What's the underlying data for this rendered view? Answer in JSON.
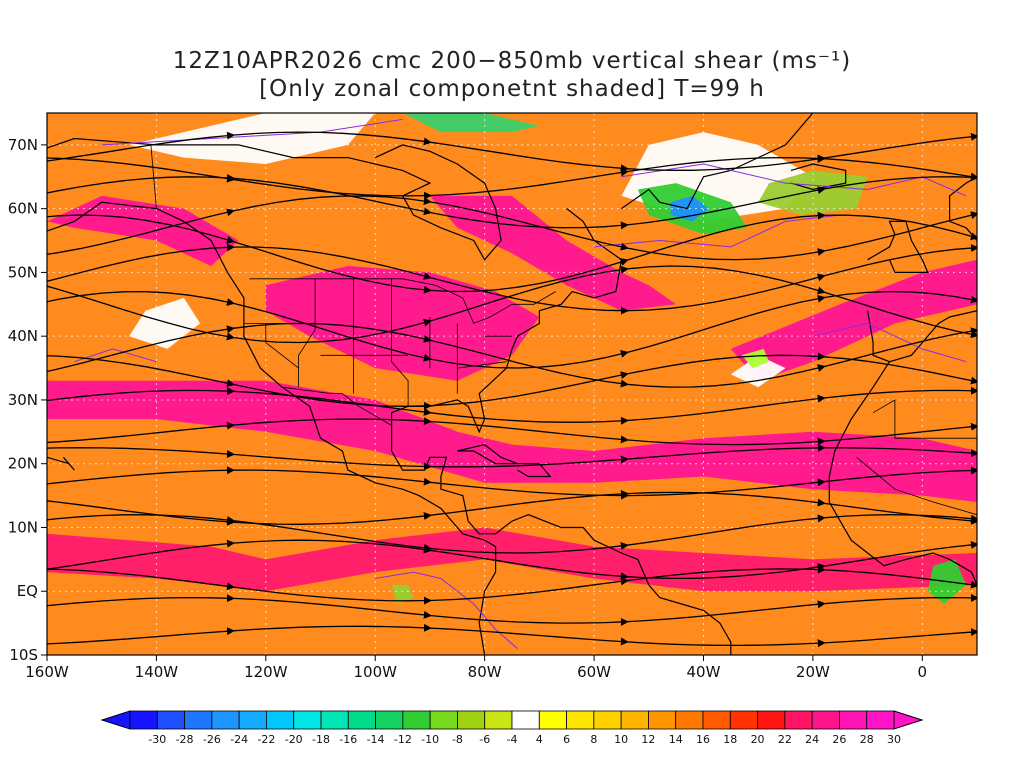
{
  "title": {
    "line1": "12Z10APR2026 cmc 200−850mb vertical shear (ms⁻¹)",
    "line2": "[Only zonal componetnt shaded] T=99 h"
  },
  "map": {
    "lon_range": [
      -160,
      10
    ],
    "lat_range": [
      -10,
      75
    ],
    "x_ticks": [
      {
        "lon": -160,
        "label": "160W"
      },
      {
        "lon": -140,
        "label": "140W"
      },
      {
        "lon": -120,
        "label": "120W"
      },
      {
        "lon": -100,
        "label": "100W"
      },
      {
        "lon": -80,
        "label": "80W"
      },
      {
        "lon": -60,
        "label": "60W"
      },
      {
        "lon": -40,
        "label": "40W"
      },
      {
        "lon": -20,
        "label": "20W"
      },
      {
        "lon": 0,
        "label": "0"
      }
    ],
    "y_ticks": [
      {
        "lat": 70,
        "label": "70N"
      },
      {
        "lat": 60,
        "label": "60N"
      },
      {
        "lat": 50,
        "label": "50N"
      },
      {
        "lat": 40,
        "label": "40N"
      },
      {
        "lat": 30,
        "label": "30N"
      },
      {
        "lat": 20,
        "label": "20N"
      },
      {
        "lat": 10,
        "label": "10N"
      },
      {
        "lat": 0,
        "label": "EQ"
      },
      {
        "lat": -10,
        "label": "10S"
      }
    ],
    "shading_regions": [
      {
        "level": 30,
        "color": "#ff1493",
        "points": [
          [
            -160,
            33
          ],
          [
            -120,
            33
          ],
          [
            -100,
            30
          ],
          [
            -85,
            25
          ],
          [
            -75,
            23
          ],
          [
            -60,
            22
          ],
          [
            -40,
            24
          ],
          [
            -20,
            25
          ],
          [
            0,
            24
          ],
          [
            10,
            22
          ],
          [
            10,
            14
          ],
          [
            0,
            15
          ],
          [
            -20,
            16
          ],
          [
            -40,
            18
          ],
          [
            -60,
            17
          ],
          [
            -80,
            17
          ],
          [
            -100,
            22
          ],
          [
            -120,
            25
          ],
          [
            -140,
            27
          ],
          [
            -160,
            27
          ]
        ]
      },
      {
        "level": 30,
        "color": "#ff1493",
        "points": [
          [
            -120,
            48
          ],
          [
            -105,
            51
          ],
          [
            -90,
            50
          ],
          [
            -78,
            47
          ],
          [
            -70,
            43
          ],
          [
            -75,
            37
          ],
          [
            -85,
            33
          ],
          [
            -100,
            35
          ],
          [
            -112,
            40
          ],
          [
            -120,
            44
          ]
        ]
      },
      {
        "level": 30,
        "color": "#ff1493",
        "points": [
          [
            -90,
            62
          ],
          [
            -75,
            62
          ],
          [
            -65,
            55
          ],
          [
            -55,
            50
          ],
          [
            -50,
            48
          ],
          [
            -45,
            45
          ],
          [
            -55,
            44
          ],
          [
            -65,
            48
          ],
          [
            -75,
            53
          ],
          [
            -85,
            57
          ]
        ]
      },
      {
        "level": 30,
        "color": "#ff1493",
        "points": [
          [
            -150,
            62
          ],
          [
            -135,
            60
          ],
          [
            -125,
            55
          ],
          [
            -130,
            51
          ],
          [
            -140,
            55
          ],
          [
            -155,
            57
          ],
          [
            -160,
            58
          ]
        ]
      },
      {
        "level": 30,
        "color": "#ff1493",
        "points": [
          [
            -35,
            38
          ],
          [
            -15,
            45
          ],
          [
            0,
            50
          ],
          [
            10,
            52
          ],
          [
            10,
            45
          ],
          [
            -5,
            42
          ],
          [
            -20,
            36
          ],
          [
            -30,
            33
          ]
        ]
      },
      {
        "level": 28,
        "color": "#ff1a6e",
        "points": [
          [
            -160,
            9
          ],
          [
            -130,
            7
          ],
          [
            -120,
            5
          ],
          [
            -100,
            8
          ],
          [
            -80,
            10
          ],
          [
            -60,
            7
          ],
          [
            -40,
            6
          ],
          [
            -20,
            5
          ],
          [
            10,
            6
          ],
          [
            10,
            1
          ],
          [
            -20,
            0
          ],
          [
            -40,
            0
          ],
          [
            -60,
            2
          ],
          [
            -80,
            5
          ],
          [
            -100,
            3
          ],
          [
            -120,
            0
          ],
          [
            -140,
            2
          ],
          [
            -160,
            3
          ]
        ]
      },
      {
        "level": 0,
        "color": "#ffffff",
        "points": [
          [
            -142,
            44
          ],
          [
            -135,
            46
          ],
          [
            -132,
            42
          ],
          [
            -138,
            38
          ],
          [
            -145,
            40
          ]
        ]
      },
      {
        "level": 0,
        "color": "#ffffff",
        "points": [
          [
            -145,
            70
          ],
          [
            -120,
            75
          ],
          [
            -100,
            75
          ],
          [
            -105,
            70
          ],
          [
            -120,
            67
          ],
          [
            -135,
            68
          ]
        ]
      },
      {
        "level": 0,
        "color": "#ffffff",
        "points": [
          [
            -35,
            34
          ],
          [
            -30,
            37
          ],
          [
            -25,
            35
          ],
          [
            -30,
            32
          ]
        ]
      },
      {
        "level": 0,
        "color": "#ffffff",
        "points": [
          [
            -50,
            70
          ],
          [
            -40,
            72
          ],
          [
            -30,
            70
          ],
          [
            -20,
            65
          ],
          [
            -25,
            60
          ],
          [
            -40,
            58
          ],
          [
            -55,
            62
          ]
        ]
      },
      {
        "level": -10,
        "color": "#32cd32",
        "points": [
          [
            -52,
            63
          ],
          [
            -45,
            64
          ],
          [
            -35,
            61
          ],
          [
            -32,
            57
          ],
          [
            -40,
            56
          ],
          [
            -50,
            59
          ]
        ]
      },
      {
        "level": -22,
        "color": "#1e90ff",
        "points": [
          [
            -46,
            61
          ],
          [
            -42,
            62
          ],
          [
            -39,
            60
          ],
          [
            -42,
            58
          ],
          [
            -46,
            59
          ]
        ]
      },
      {
        "level": -6,
        "color": "#9acd32",
        "points": [
          [
            -28,
            64
          ],
          [
            -20,
            66
          ],
          [
            -10,
            65
          ],
          [
            -12,
            60
          ],
          [
            -22,
            59
          ],
          [
            -30,
            61
          ]
        ]
      },
      {
        "level": -10,
        "color": "#3cd06a",
        "points": [
          [
            -95,
            75
          ],
          [
            -80,
            75
          ],
          [
            -70,
            73
          ],
          [
            -75,
            72
          ],
          [
            -88,
            72
          ]
        ]
      },
      {
        "level": -6,
        "color": "#9acd32",
        "points": [
          [
            -97,
            1
          ],
          [
            -94,
            1
          ],
          [
            -93,
            -1
          ],
          [
            -96,
            -2
          ]
        ]
      },
      {
        "level": -4,
        "color": "#adff2f",
        "points": [
          [
            -33,
            37
          ],
          [
            -29,
            38
          ],
          [
            -28,
            36
          ],
          [
            -31,
            35
          ]
        ]
      },
      {
        "level": -10,
        "color": "#32cd32",
        "points": [
          [
            2,
            4
          ],
          [
            6,
            5
          ],
          [
            8,
            1
          ],
          [
            4,
            -2
          ],
          [
            1,
            0
          ]
        ]
      }
    ]
  },
  "colorbar": {
    "levels": [
      "-30",
      "-28",
      "-26",
      "-24",
      "-22",
      "-20",
      "-18",
      "-16",
      "-14",
      "-12",
      "-10",
      "-8",
      "-6",
      "-4",
      "4",
      "6",
      "8",
      "10",
      "12",
      "14",
      "16",
      "18",
      "20",
      "22",
      "24",
      "26",
      "28",
      "30"
    ],
    "colors": [
      "#1414ff",
      "#1e50ff",
      "#1e78ff",
      "#1e96ff",
      "#14aaff",
      "#00c8ff",
      "#00e6e6",
      "#00e6b4",
      "#00dc8c",
      "#14d264",
      "#32cd32",
      "#78dc1e",
      "#a0d214",
      "#c8e614",
      "#ffffff",
      "#ffff00",
      "#ffe600",
      "#ffd200",
      "#ffb400",
      "#ff9600",
      "#ff7800",
      "#ff5a00",
      "#ff3200",
      "#ff1414",
      "#ff1464",
      "#ff148c",
      "#ff14b4",
      "#ff14c8"
    ],
    "underflow_color": "#1414ff",
    "overflow_color": "#ff14c8"
  },
  "style": {
    "background_shade": "#ff8a1e",
    "streamline_color": "#000000",
    "coast_color": "#000000",
    "contour_color": "#8a2be2"
  }
}
